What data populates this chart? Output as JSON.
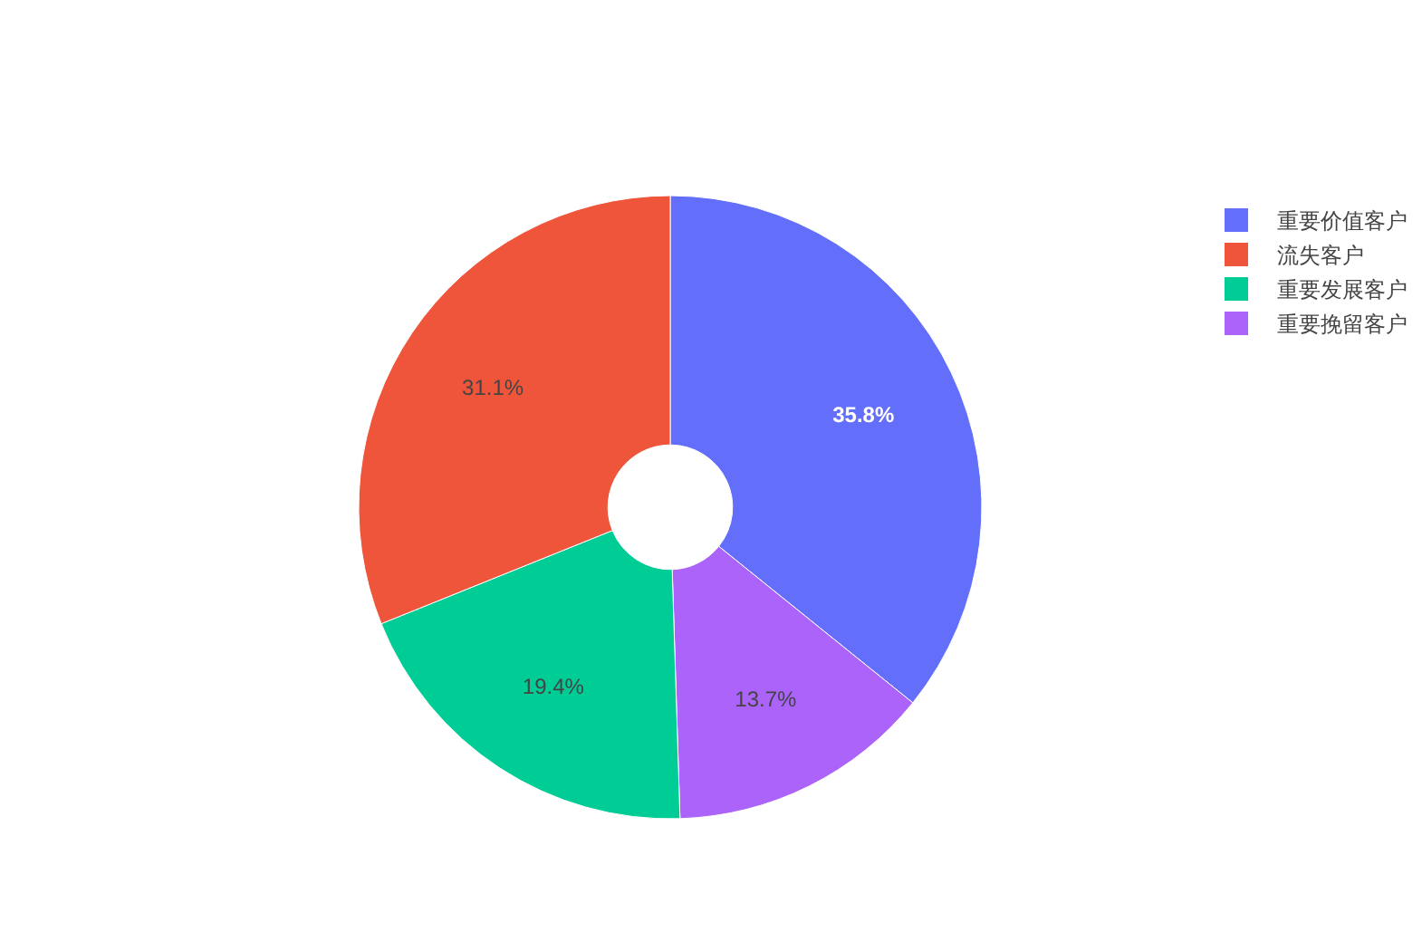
{
  "chart_data": {
    "type": "donut",
    "categories": [
      "重要价值客户",
      "流失客户",
      "重要发展客户",
      "重要挽留客户"
    ],
    "values": [
      35.8,
      31.1,
      19.4,
      13.7
    ],
    "colors": [
      "#636efa",
      "#ef553b",
      "#00cc96",
      "#ab63fa"
    ],
    "value_labels": [
      "35.8%",
      "31.1%",
      "19.4%",
      "13.7%"
    ],
    "legend": "top right"
  }
}
